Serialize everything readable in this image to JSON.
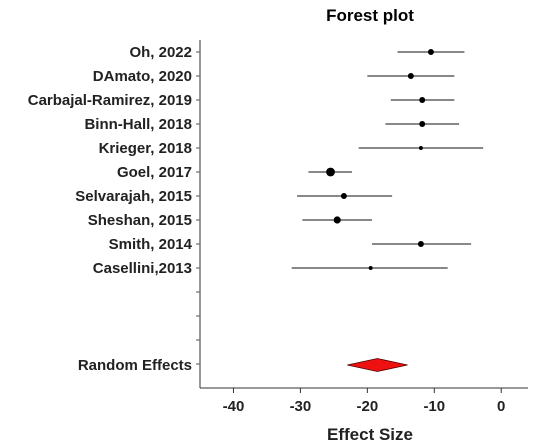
{
  "chart_data": {
    "type": "forest",
    "title": "Forest plot",
    "xlabel": "Effect Size",
    "xlim": [
      -45,
      4
    ],
    "xticks": [
      -40,
      -30,
      -20,
      -10,
      0
    ],
    "grid": false,
    "studies": [
      {
        "label": "Oh, 2022",
        "estimate": -10.5,
        "ci_low": -15.5,
        "ci_high": -5.5,
        "weight": "small"
      },
      {
        "label": "DAmato, 2020",
        "estimate": -13.5,
        "ci_low": -20.0,
        "ci_high": -7.0,
        "weight": "small"
      },
      {
        "label": "Carbajal-Ramirez, 2019",
        "estimate": -11.8,
        "ci_low": -16.5,
        "ci_high": -7.0,
        "weight": "small"
      },
      {
        "label": "Binn-Hall, 2018",
        "estimate": -11.8,
        "ci_low": -17.3,
        "ci_high": -6.3,
        "weight": "small"
      },
      {
        "label": "Krieger, 2018",
        "estimate": -12.0,
        "ci_low": -21.3,
        "ci_high": -2.7,
        "weight": "tiny"
      },
      {
        "label": "Goel, 2017",
        "estimate": -25.5,
        "ci_low": -28.8,
        "ci_high": -22.3,
        "weight": "large"
      },
      {
        "label": "Selvarajah, 2015",
        "estimate": -23.5,
        "ci_low": -30.5,
        "ci_high": -16.3,
        "weight": "small"
      },
      {
        "label": "Sheshan, 2015",
        "estimate": -24.5,
        "ci_low": -29.7,
        "ci_high": -19.3,
        "weight": "medium"
      },
      {
        "label": "Smith, 2014",
        "estimate": -12.0,
        "ci_low": -19.3,
        "ci_high": -4.5,
        "weight": "small"
      },
      {
        "label": "Casellini,2013",
        "estimate": -19.5,
        "ci_low": -31.3,
        "ci_high": -8.0,
        "weight": "tiny"
      }
    ],
    "summary": {
      "label": "Random Effects",
      "estimate": -18.5,
      "ci_low": -23.0,
      "ci_high": -14.0,
      "color": "#ee1111"
    }
  }
}
